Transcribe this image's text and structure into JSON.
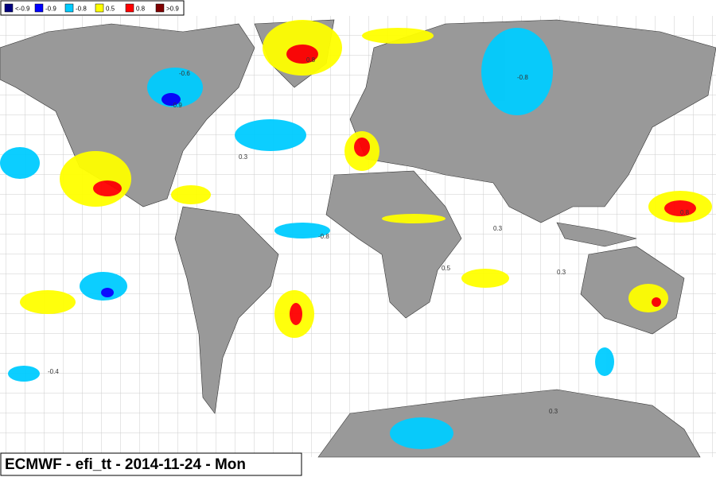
{
  "legend": [
    {
      "label": "<-0.9",
      "color": "#000080"
    },
    {
      "label": "-0.9",
      "color": "#0000ff"
    },
    {
      "label": "-0.8",
      "color": "#00ccff"
    },
    {
      "label": "0.5",
      "color": "#ffff00"
    },
    {
      "label": "0.8",
      "color": "#ff0000"
    },
    {
      "label": ">0.9",
      "color": "#800000"
    }
  ],
  "footer": "ECMWF - efi_tt - 2014-11-24 - Mon",
  "contour_labels": [
    "-0.8",
    "-0.9",
    "0.8",
    "0.3",
    "-0.8",
    "0.3",
    "0.5",
    "-0.6",
    "0.3",
    "-0.4",
    "0.8",
    "0.3"
  ]
}
